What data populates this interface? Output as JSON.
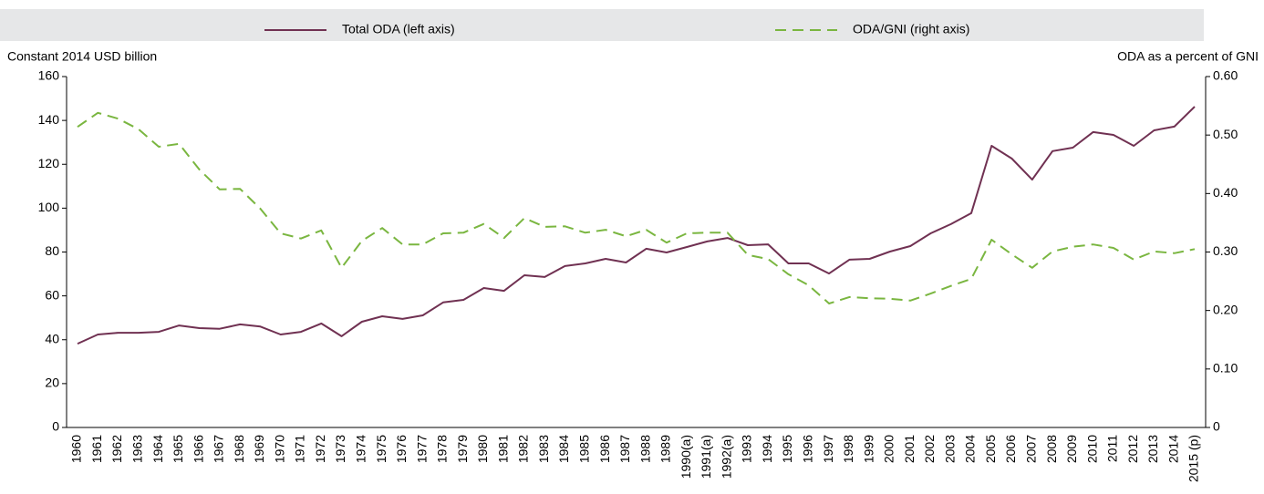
{
  "chart_data": {
    "type": "line",
    "y_label": "Constant 2014 USD billion",
    "y2_label": "ODA as a percent of GNI",
    "categories": [
      "1960",
      "1961",
      "1962",
      "1963",
      "1964",
      "1965",
      "1966",
      "1967",
      "1968",
      "1969",
      "1970",
      "1971",
      "1972",
      "1973",
      "1974",
      "1975",
      "1976",
      "1977",
      "1978",
      "1979",
      "1980",
      "1981",
      "1982",
      "1983",
      "1984",
      "1985",
      "1986",
      "1987",
      "1988",
      "1989",
      "1990(a)",
      "1991(a)",
      "1992(a)",
      "1993",
      "1994",
      "1995",
      "1996",
      "1997",
      "1998",
      "1999",
      "2000",
      "2001",
      "2002",
      "2003",
      "2004",
      "2005",
      "2006",
      "2007",
      "2008",
      "2009",
      "2010",
      "2011",
      "2012",
      "2013",
      "2014",
      "2015 (p)"
    ],
    "series": [
      {
        "name": "Total ODA (left axis)",
        "color": "#703152",
        "dashed": false,
        "values": [
          38.2,
          42.4,
          43.2,
          43.2,
          43.6,
          46.5,
          45.3,
          45,
          47,
          46,
          42.4,
          43.6,
          47.4,
          41.6,
          48.2,
          50.7,
          49.5,
          51.1,
          57,
          58.2,
          63.6,
          62.3,
          69.4,
          68.6,
          73.6,
          74.8,
          76.9,
          75.2,
          81.5,
          79.8,
          82.3,
          84.8,
          86.4,
          83.1,
          83.5,
          74.8,
          74.8,
          70.2,
          76.5,
          76.9,
          80.2,
          82.7,
          88.5,
          92.7,
          97.7,
          128.4,
          122.6,
          113,
          126,
          127.6,
          134.7,
          133.4,
          128.4,
          135.5,
          137.2,
          146.3
        ]
      },
      {
        "name": "ODA/GNI (right axis)",
        "color": "#7ab640",
        "dashed": true,
        "axis": "y2",
        "values": [
          0.514,
          0.538,
          0.528,
          0.51,
          0.48,
          0.485,
          0.441,
          0.407,
          0.408,
          0.374,
          0.332,
          0.323,
          0.337,
          0.273,
          0.319,
          0.341,
          0.313,
          0.313,
          0.332,
          0.333,
          0.348,
          0.324,
          0.358,
          0.343,
          0.344,
          0.333,
          0.338,
          0.327,
          0.338,
          0.316,
          0.332,
          0.333,
          0.333,
          0.295,
          0.288,
          0.262,
          0.243,
          0.212,
          0.223,
          0.221,
          0.22,
          0.217,
          0.229,
          0.242,
          0.254,
          0.321,
          0.296,
          0.273,
          0.301,
          0.309,
          0.313,
          0.307,
          0.287,
          0.301,
          0.298,
          0.305
        ]
      }
    ],
    "ylim": [
      0,
      160
    ],
    "yticks": [
      0,
      20,
      40,
      60,
      80,
      100,
      120,
      140,
      160
    ],
    "y2lim": [
      0,
      0.6
    ],
    "y2ticks": [
      0,
      {
        "value": 0.1,
        "label": "0.10"
      },
      {
        "value": 0.2,
        "label": "0.20"
      },
      {
        "value": 0.3,
        "label": "0.30"
      },
      {
        "value": 0.4,
        "label": "0.40"
      },
      {
        "value": 0.5,
        "label": "0.50"
      },
      {
        "value": 0.6,
        "label": "0.60"
      }
    ],
    "legend": "top",
    "grid": false
  }
}
